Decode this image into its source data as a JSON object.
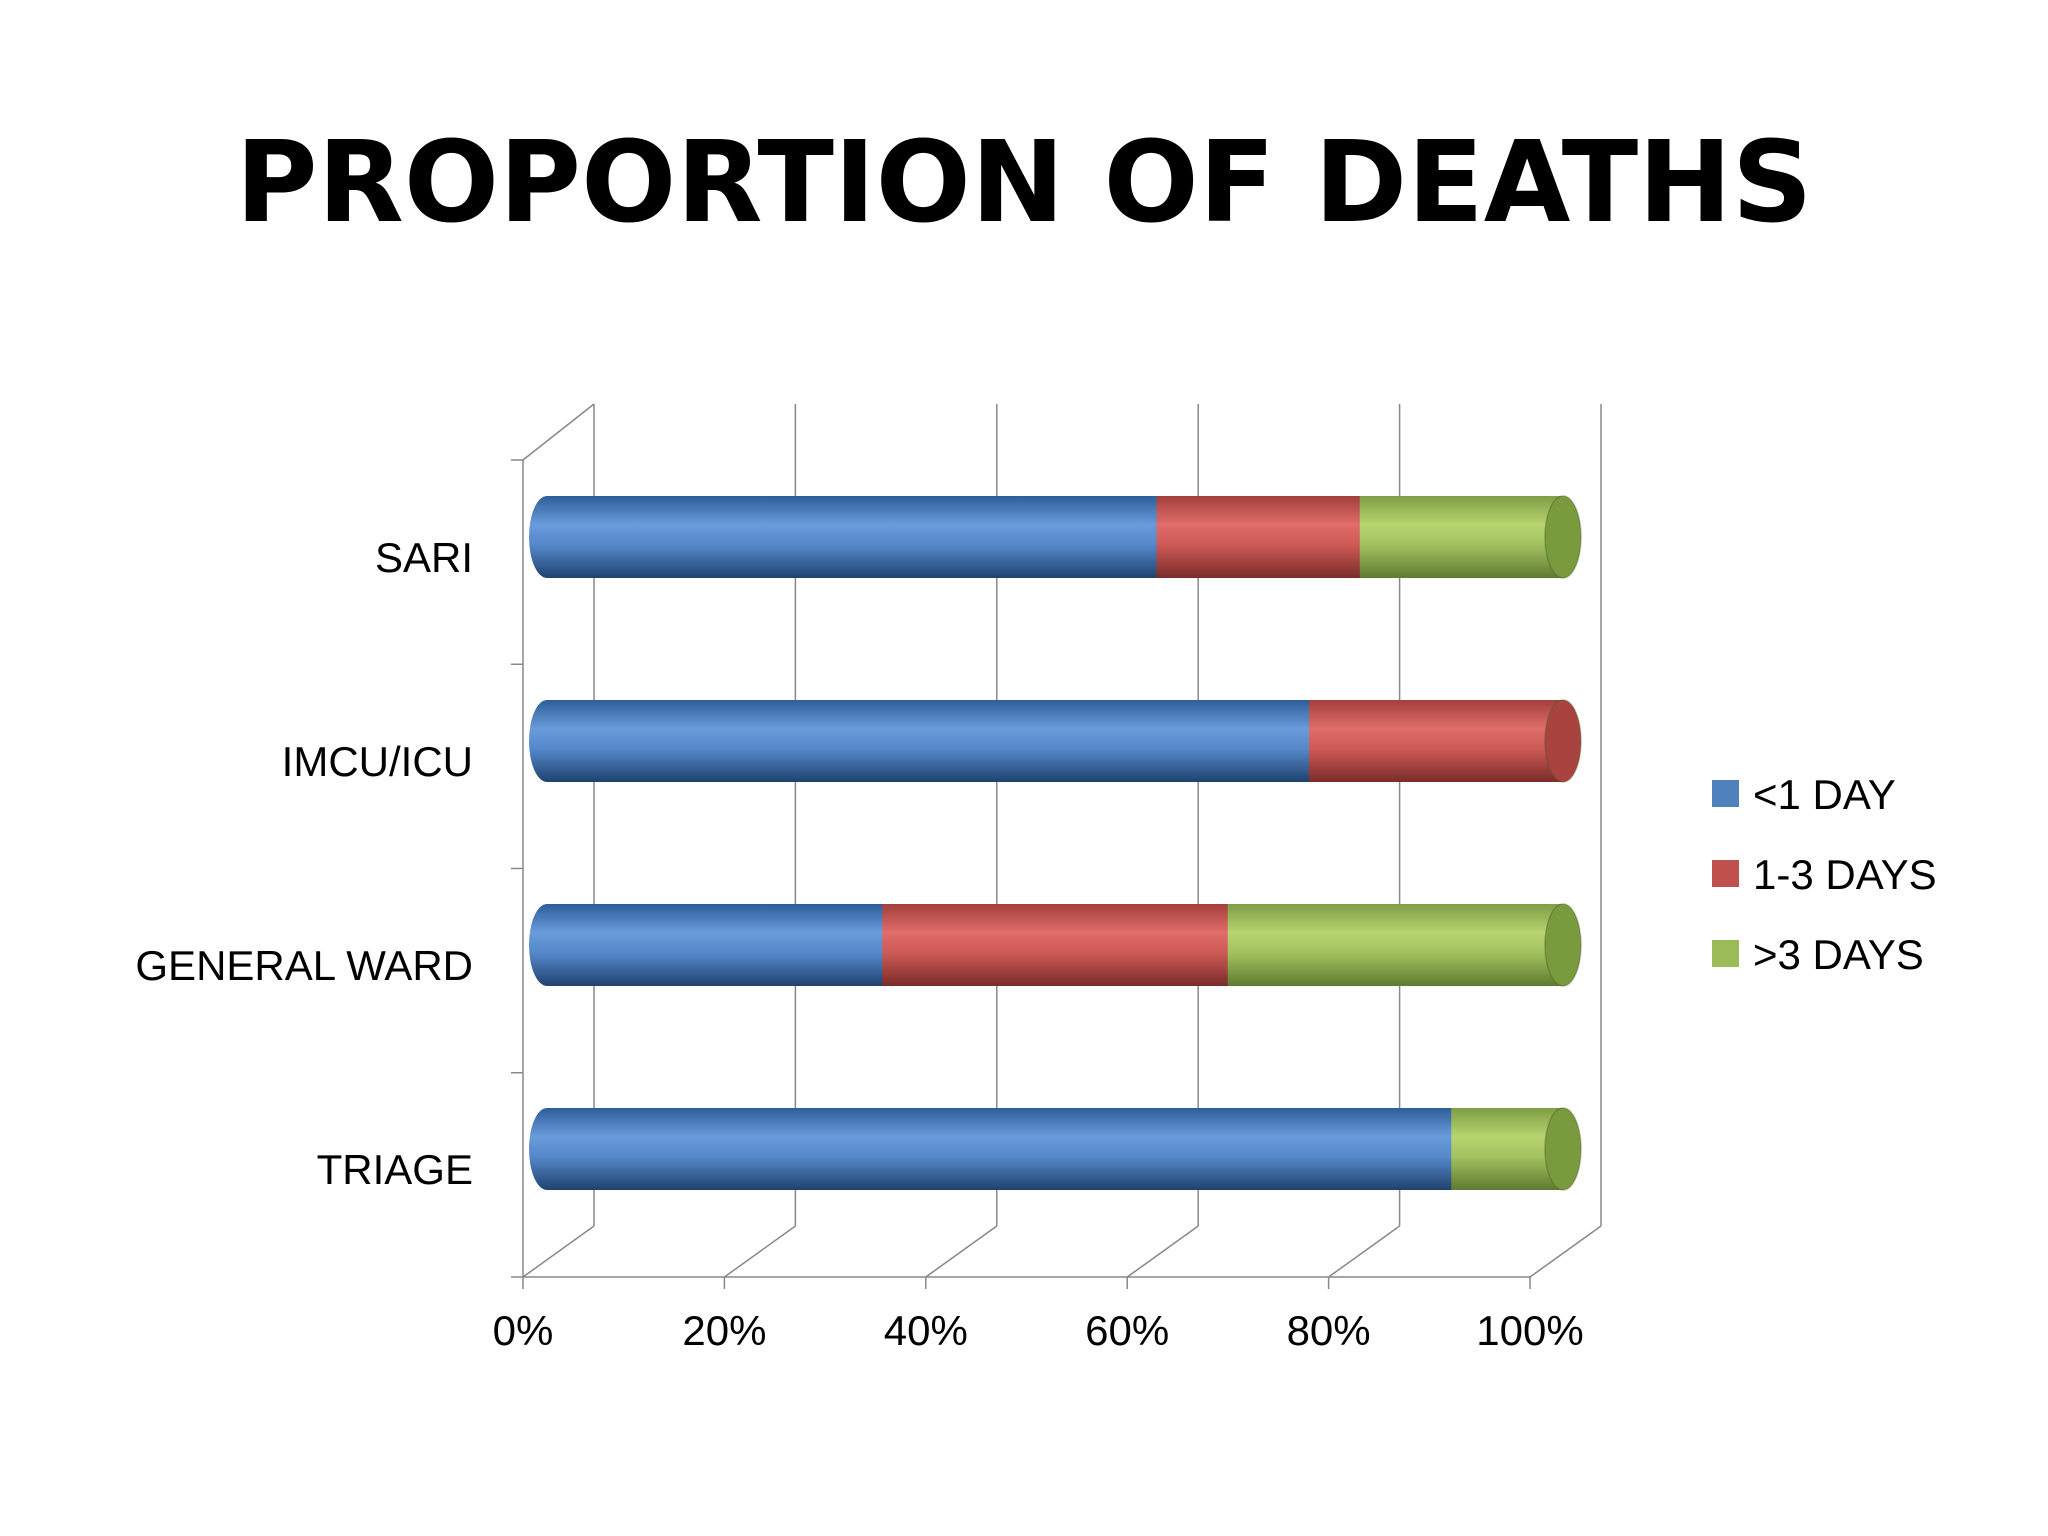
{
  "slide": {
    "title": "PROPORTION OF DEATHS"
  },
  "chart_data": {
    "type": "bar",
    "orientation": "horizontal",
    "stacked": "percent",
    "style": "3d-cylinder",
    "title": "",
    "xlabel": "",
    "ylabel": "",
    "categories": [
      "SARI",
      "IMCU/ICU",
      "GENERAL WARD",
      "TRIAGE"
    ],
    "x_ticks": [
      "0%",
      "20%",
      "40%",
      "60%",
      "80%",
      "100%"
    ],
    "xlim": [
      0,
      100
    ],
    "grid": true,
    "legend_position": "right",
    "series": [
      {
        "name": "<1 DAY",
        "color": "#4F81BD",
        "values": [
          60,
          75,
          33,
          89
        ]
      },
      {
        "name": "1-3 DAYS",
        "color": "#C0504D",
        "values": [
          20,
          25,
          34,
          0
        ]
      },
      {
        "name": ">3 DAYS",
        "color": "#9BBB59",
        "values": [
          20,
          0,
          33,
          11
        ]
      }
    ]
  }
}
